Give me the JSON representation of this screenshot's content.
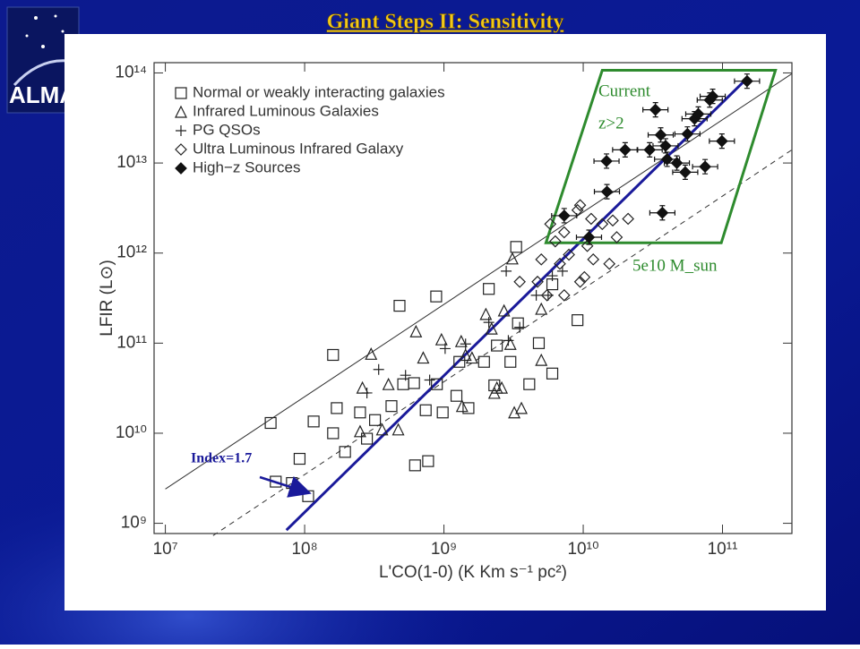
{
  "logo_text": "ALMA",
  "chart_data": {
    "type": "scatter",
    "title": "Giant Steps II: Sensitivity",
    "x_label": "L'CO(1-0) (K Km s⁻¹ pc²)",
    "y_label": "LFIR (L⊙)",
    "xscale": "log",
    "yscale": "log",
    "xlim": [
      8300000.0,
      315000000000.0
    ],
    "ylim": [
      770000000.0,
      130000000000000.0
    ],
    "xticks": [
      {
        "value": 10000000.0,
        "label": "10⁷"
      },
      {
        "value": 100000000.0,
        "label": "10⁸"
      },
      {
        "value": 1000000000.0,
        "label": "10⁹"
      },
      {
        "value": 10000000000.0,
        "label": "10¹⁰"
      },
      {
        "value": 100000000000.0,
        "label": "10¹¹"
      }
    ],
    "yticks": [
      {
        "value": 1000000000.0,
        "label": "10⁹"
      },
      {
        "value": 10000000000.0,
        "label": "10¹⁰"
      },
      {
        "value": 100000000000.0,
        "label": "10¹¹"
      },
      {
        "value": 1000000000000.0,
        "label": "10¹²"
      },
      {
        "value": 10000000000000.0,
        "label": "10¹³"
      },
      {
        "value": 100000000000000.0,
        "label": "10¹⁴"
      }
    ],
    "legend": "upper left",
    "series": [
      {
        "name": "Normal or weakly interacting galaxies",
        "marker": "square",
        "color": "#222222",
        "x": [
          57000000.0,
          116000000.0,
          170000000.0,
          160000000.0,
          250000000.0,
          195000000.0,
          280000000.0,
          420000000.0,
          320000000.0,
          510000000.0,
          610000000.0,
          890000000.0,
          740000000.0,
          980000000.0,
          620000000.0,
          770000000.0,
          1230000000.0,
          1500000000.0,
          1940000000.0,
          2400000000.0,
          3000000000.0,
          3400000000.0,
          2100000000.0,
          3300000000.0,
          880000000.0,
          480000000.0,
          6000000000.0,
          9100000000.0,
          4800000000.0,
          6000000000.0,
          160000000.0,
          62000000.0,
          81000000.0,
          106000000.0,
          92000000.0,
          4100000000.0,
          1290000000.0,
          2300000000.0
        ],
        "values": [
          13000000000.0,
          13500000000.0,
          19000000000.0,
          10000000000.0,
          17000000000.0,
          6200000000.0,
          8700000000.0,
          20000000000.0,
          14000000000.0,
          35000000000.0,
          36000000000.0,
          35000000000.0,
          18000000000.0,
          17000000000.0,
          4400000000.0,
          4900000000.0,
          26000000000.0,
          19000000000.0,
          62000000000.0,
          94000000000.0,
          62000000000.0,
          166000000000.0,
          400000000000.0,
          1170000000000.0,
          330000000000.0,
          260000000000.0,
          450000000000.0,
          180000000000.0,
          100000000000.0,
          46000000000.0,
          74000000000.0,
          2900000000.0,
          2800000000.0,
          2000000000.0,
          5200000000.0,
          35000000000.0,
          62000000000.0,
          34000000000.0
        ]
      },
      {
        "name": "Infrared Luminous Galaxies",
        "marker": "triangle",
        "color": "#222222",
        "x": [
          300000000.0,
          260000000.0,
          400000000.0,
          630000000.0,
          710000000.0,
          960000000.0,
          1330000000.0,
          1590000000.0,
          2000000000.0,
          2200000000.0,
          2700000000.0,
          3100000000.0,
          5000000000.0,
          3000000000.0,
          2300000000.0,
          3200000000.0,
          3600000000.0,
          2600000000.0,
          1350000000.0,
          470000000.0,
          250000000.0,
          360000000.0,
          1430000000.0,
          2400000000.0,
          5000000000.0
        ],
        "values": [
          76000000000.0,
          32000000000.0,
          35000000000.0,
          135000000000.0,
          69000000000.0,
          110000000000.0,
          105000000000.0,
          69000000000.0,
          210000000000.0,
          145000000000.0,
          230000000000.0,
          870000000000.0,
          240000000000.0,
          98000000000.0,
          28000000000.0,
          17000000000.0,
          19000000000.0,
          32000000000.0,
          20000000000.0,
          11000000000.0,
          10500000000.0,
          11000000000.0,
          74000000000.0,
          32000000000.0,
          65000000000.0
        ]
      },
      {
        "name": "PG QSOs",
        "marker": "plus",
        "color": "#222222",
        "x": [
          340000000.0,
          530000000.0,
          790000000.0,
          1020000000.0,
          1430000000.0,
          2800000000.0,
          3500000000.0,
          4600000000.0,
          5600000000.0,
          6000000000.0,
          7100000000.0,
          2100000000.0,
          2900000000.0,
          280000000.0
        ],
        "values": [
          51000000000.0,
          44000000000.0,
          39000000000.0,
          87000000000.0,
          98000000000.0,
          630000000000.0,
          150000000000.0,
          340000000000.0,
          340000000000.0,
          560000000000.0,
          630000000000.0,
          170000000000.0,
          107000000000.0,
          28000000000.0
        ]
      },
      {
        "name": "Ultra Luminous Infrared Galaxy",
        "marker": "diamond",
        "color": "#222222",
        "x": [
          5800000000.0,
          6300000000.0,
          7300000000.0,
          9100000000.0,
          9500000000.0,
          11400000000.0,
          13700000000.0,
          16300000000.0,
          21000000000.0,
          10700000000.0,
          11800000000.0,
          15400000000.0,
          10200000000.0,
          7900000000.0,
          6800000000.0,
          4700000000.0,
          3500000000.0,
          9500000000.0,
          7300000000.0,
          5000000000.0,
          17400000000.0,
          5500000000.0
        ],
        "values": [
          2100000000000.0,
          1350000000000.0,
          1700000000000.0,
          3000000000000.0,
          3400000000000.0,
          2400000000000.0,
          2100000000000.0,
          2300000000000.0,
          2400000000000.0,
          1200000000000.0,
          850000000000.0,
          760000000000.0,
          540000000000.0,
          960000000000.0,
          760000000000.0,
          480000000000.0,
          480000000000.0,
          480000000000.0,
          340000000000.0,
          850000000000.0,
          1500000000000.0,
          340000000000.0
        ]
      },
      {
        "name": "High−z Sources",
        "marker": "filled-diamond",
        "color": "#111111",
        "x": [
          7300000000.0,
          14800000000.0,
          14700000000.0,
          20000000000.0,
          30000000000.0,
          33000000000.0,
          36000000000.0,
          39000000000.0,
          40000000000.0,
          47000000000.0,
          54000000000.0,
          75000000000.0,
          99000000000.0,
          63000000000.0,
          67000000000.0,
          81000000000.0,
          85000000000.0,
          150000000000.0,
          37000000000.0,
          11000000000.0,
          56000000000.0
        ],
        "values": [
          2600000000000.0,
          4800000000000.0,
          10500000000000.0,
          14000000000000.0,
          14000000000000.0,
          39000000000000.0,
          20500000000000.0,
          15500000000000.0,
          11000000000000.0,
          10000000000000.0,
          7900000000000.0,
          9100000000000.0,
          17500000000000.0,
          31000000000000.0,
          35000000000000.0,
          50000000000000.0,
          55000000000000.0,
          81000000000000.0,
          2800000000000.0,
          1500000000000.0,
          21000000000000.0
        ]
      }
    ],
    "lines": [
      {
        "style": "solid",
        "color": "#333333",
        "x": [
          10000000.0,
          315000000000.0
        ],
        "values": [
          2400000000.0,
          98000000000000.0
        ]
      },
      {
        "style": "dashed",
        "color": "#333333",
        "x": [
          22000000.0,
          315000000000.0
        ],
        "values": [
          730000000.0,
          14000000000000.0
        ]
      },
      {
        "style": "solid",
        "color": "#1a1a9a",
        "x": [
          74000000.0,
          150000000000.0
        ],
        "values": [
          840000000.0,
          87000000000000.0
        ]
      }
    ],
    "region": {
      "color": "#2e8b2e",
      "x": [
        5400000000.0,
        13700000000.0,
        240000000000.0,
        98000000000.0
      ],
      "values": [
        1300000000000.0,
        107000000000000.0,
        107000000000000.0,
        1300000000000.0
      ]
    },
    "annotations": [
      {
        "text": "Current",
        "color": "#2e8b2e"
      },
      {
        "text": "z>2",
        "color": "#2e8b2e"
      },
      {
        "text": "5e10 M_sun",
        "color": "#2e8b2e"
      },
      {
        "text": "Index=1.7",
        "color": "#1a1a9a"
      }
    ]
  }
}
